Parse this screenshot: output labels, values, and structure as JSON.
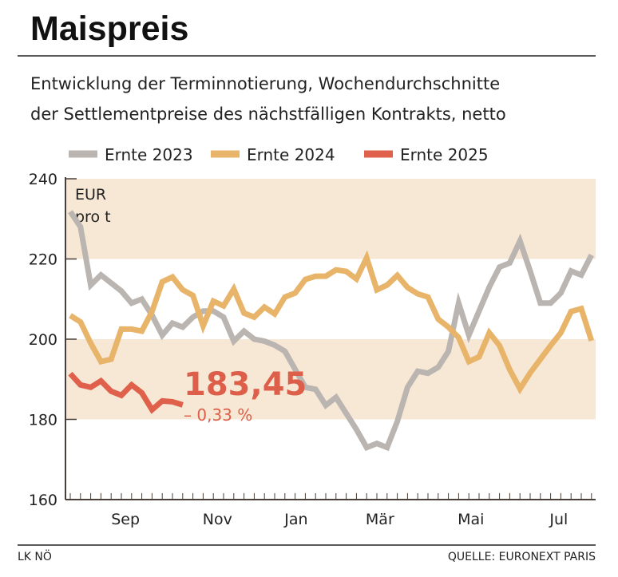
{
  "title": "Maispreis",
  "subtitle": [
    "Entwicklung der Terminnotierung, Wochendurchschnitte",
    "der Settlementpreise des nächstfälligen Kontrakts, netto"
  ],
  "footer": {
    "left": "LK NÖ",
    "right": "QUELLE: EURONEXT PARIS"
  },
  "chart_data": {
    "type": "line",
    "ylabel": [
      "EUR",
      "pro t"
    ],
    "ylim": [
      160,
      240
    ],
    "yticks": [
      160,
      180,
      200,
      220,
      240
    ],
    "shaded_bands": [
      [
        220,
        240
      ],
      [
        180,
        200
      ]
    ],
    "x_unit_weeks": true,
    "xticks": [
      {
        "label": "Sep",
        "week": 5.4
      },
      {
        "label": "Nov",
        "week": 14.4
      },
      {
        "label": "Jan",
        "week": 22.1
      },
      {
        "label": "Mär",
        "week": 30.3
      },
      {
        "label": "Mai",
        "week": 39.2
      },
      {
        "label": "Jul",
        "week": 47.8
      }
    ],
    "legend_position": "top",
    "series": [
      {
        "name": "Ernte 2023",
        "color": "#bab5b0",
        "values": [
          231.8,
          228,
          213.5,
          216,
          214,
          212,
          209,
          210,
          206,
          201,
          204,
          203,
          205.5,
          207,
          207,
          205.5,
          199.5,
          202,
          200,
          199.5,
          198.5,
          197,
          192.5,
          188,
          187.5,
          183.5,
          185.5,
          181.5,
          177.5,
          173,
          174,
          173,
          179.5,
          188,
          192,
          191.5,
          193,
          197,
          209,
          201,
          207,
          213,
          218,
          219,
          224.5,
          217,
          209,
          209,
          211.5,
          217,
          216,
          221
        ]
      },
      {
        "name": "Ernte 2024",
        "color": "#e8b46a",
        "values": [
          205.9,
          204.3,
          199,
          194.4,
          195,
          202.5,
          202.5,
          202,
          206.9,
          214.3,
          215.5,
          212.3,
          210.9,
          203.3,
          209.5,
          208.3,
          212.5,
          206.5,
          205.5,
          208,
          206.3,
          210.5,
          211.5,
          214.9,
          215.7,
          215.7,
          217.3,
          216.9,
          215,
          220.3,
          212.3,
          213.5,
          215.9,
          212.9,
          211.3,
          210.5,
          205,
          203,
          200.4,
          194.4,
          195.6,
          201.6,
          198.4,
          192.4,
          187.6,
          191.6,
          195,
          198.4,
          201.6,
          206.9,
          207.6,
          199.6
        ]
      },
      {
        "name": "Ernte 2025",
        "color": "#e0614b",
        "values": [
          191.4,
          188.6,
          188,
          189.6,
          187,
          186,
          188.6,
          186.6,
          182.4,
          184.6,
          184.4,
          183.6
        ]
      }
    ],
    "annotation": {
      "value": "183,45",
      "change": "– 0,33 %",
      "color": "#dd5f4a"
    }
  }
}
